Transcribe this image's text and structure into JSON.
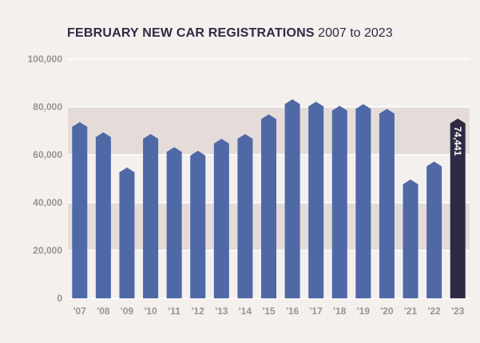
{
  "chart_data": {
    "type": "bar",
    "title": "FEBRUARY NEW CAR REGISTRATIONS",
    "subtitle": "2007 to 2023",
    "categories": [
      "'07",
      "'08",
      "'09",
      "'10",
      "'11",
      "'12",
      "'13",
      "'14",
      "'15",
      "'16",
      "'17",
      "'18",
      "'19",
      "'20",
      "'21",
      "'22",
      "'23"
    ],
    "values": [
      73000,
      68700,
      54000,
      68000,
      62500,
      61000,
      66000,
      68000,
      76200,
      82500,
      81500,
      79800,
      80500,
      78500,
      49000,
      56500,
      74441
    ],
    "highlight_label": "74,441",
    "yticks": [
      "0",
      "20,000",
      "40,000",
      "60,000",
      "80,000",
      "100,000"
    ],
    "ylim": [
      0,
      100000
    ],
    "grid": true,
    "colors": {
      "bar": "#4f68a6",
      "highlight_bar": "#2e2a44",
      "band_light": "#f3f0ee",
      "band_dark": "#e5dcd9",
      "gridline": "#ffffff",
      "text": "#9a9490",
      "title": "#2f2a44"
    }
  }
}
